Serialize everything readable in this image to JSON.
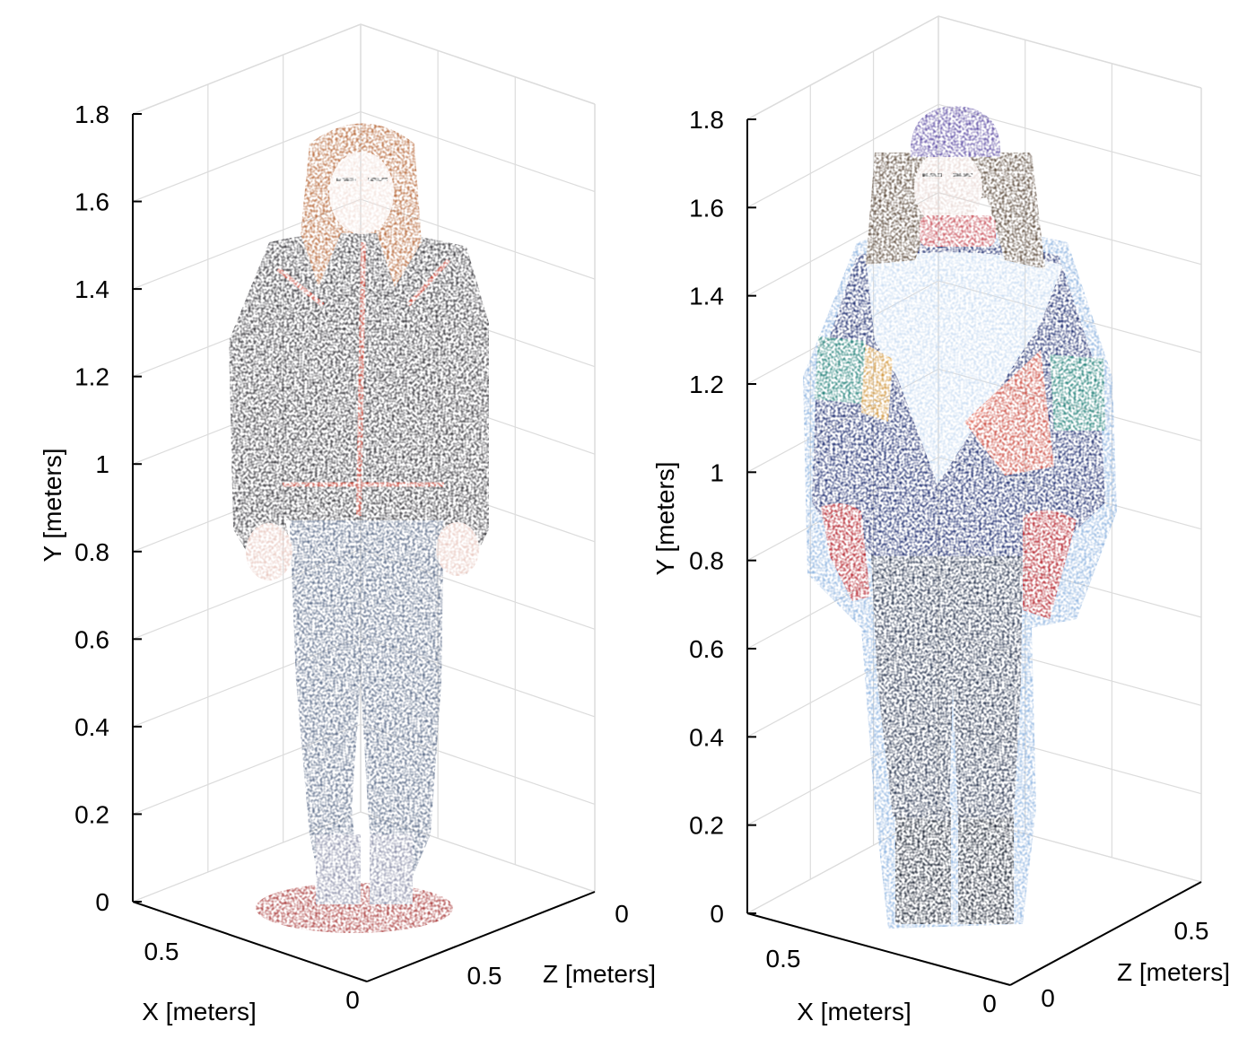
{
  "colors": {
    "axis": "#000000",
    "grid": "#dcdcdc",
    "plot1_jacket": "#3b3a3f",
    "plot1_trim": "#c0392b",
    "plot1_hair": "#b86a3c",
    "plot1_pants": "#5d6d8a",
    "plot1_floor": "#9b1b1b",
    "plot2_jacket": "#1c2b6e",
    "plot2_panel": "#c9dcf2",
    "plot2_hat": "#5b4aa3",
    "plot2_gloves": "#b3202a",
    "plot2_pants": "#2a3650",
    "plot2_halo": "#8fb4e0"
  },
  "chart_data": [
    {
      "type": "scatter",
      "subtype": "3d-point-cloud",
      "ylabel": "Y [meters]",
      "xlabel": "X [meters]",
      "zlabel": "Z [meters]",
      "y_ticks": [
        "0",
        "0.2",
        "0.4",
        "0.6",
        "0.8",
        "1",
        "1.2",
        "1.4",
        "1.6",
        "1.8"
      ],
      "x_ticks": [
        "0.5",
        "0"
      ],
      "z_ticks": [
        "0",
        "0.5"
      ],
      "ylim": [
        0,
        1.8
      ],
      "grid": true,
      "icon": "person-point-cloud-icon"
    },
    {
      "type": "scatter",
      "subtype": "3d-point-cloud",
      "ylabel": "Y [meters]",
      "xlabel": "X [meters]",
      "zlabel": "Z [meters]",
      "y_ticks": [
        "0",
        "0.2",
        "0.4",
        "0.6",
        "0.8",
        "1",
        "1.2",
        "1.4",
        "1.6",
        "1.8"
      ],
      "x_ticks": [
        "0.5",
        "0"
      ],
      "z_ticks": [
        "0",
        "0.5"
      ],
      "ylim": [
        0,
        1.8
      ],
      "grid": true,
      "icon": "person-point-cloud-icon"
    }
  ]
}
